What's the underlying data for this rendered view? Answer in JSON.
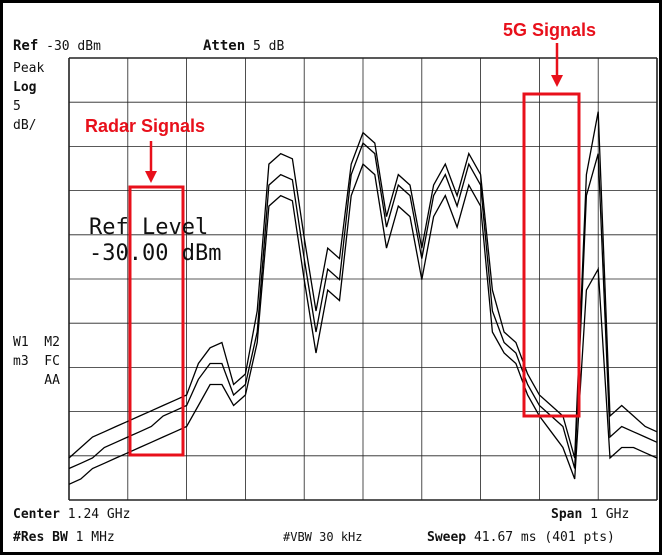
{
  "header": {
    "ref_label": "Ref",
    "ref_value": "-30 dBm",
    "atten_label": "Atten",
    "atten_value": "5 dB"
  },
  "left_labels": {
    "detector": "Peak",
    "scale": "Log",
    "scale_value": "5",
    "scale_unit": "dB/"
  },
  "marker_labels": {
    "line1": "W1  M2",
    "line2": "m3  FC",
    "line3": "    AA"
  },
  "ref_level": {
    "title": "Ref Level",
    "value": "-30.00 dBm"
  },
  "footer": {
    "center_label": "Center",
    "center_value": "1.24 GHz",
    "span_label": "Span",
    "span_value": "1 GHz",
    "resbw_label": "#Res BW",
    "resbw_value": "1 MHz",
    "vbw_label": "#VBW",
    "vbw_value": "30 kHz",
    "sweep_label": "Sweep",
    "sweep_value": "41.67 ms (401 pts)"
  },
  "annotations": {
    "radar": "Radar Signals",
    "fiveg": "5G Signals",
    "color": "#e8101b"
  },
  "chart_data": {
    "type": "line",
    "xlabel": "",
    "ylabel": "",
    "x_range_ghz": [
      0.74,
      1.74
    ],
    "y_range_db": [
      -80,
      -30
    ],
    "grid": true,
    "series": [
      {
        "x": [
          0,
          2,
          4,
          6,
          8,
          10,
          12,
          14,
          16,
          18,
          20,
          22,
          24,
          26,
          28,
          30,
          32,
          34,
          36,
          38,
          40,
          42,
          44,
          46,
          48,
          50,
          52,
          54,
          56,
          58,
          60,
          62,
          64,
          66,
          68,
          70,
          72,
          74,
          76,
          78,
          80,
          82,
          84,
          86,
          88,
          90,
          92,
          94,
          96,
          98,
          100
        ],
        "values": [
          4,
          5,
          6,
          6.5,
          7,
          7.5,
          8,
          8.5,
          9,
          9.5,
          10,
          13,
          14.5,
          15,
          11,
          12,
          18,
          32,
          33,
          32.5,
          25,
          18,
          24,
          23,
          32,
          35,
          34,
          27,
          31,
          30,
          24,
          30,
          32,
          29,
          33,
          31,
          20,
          16,
          15,
          12,
          10,
          9,
          8,
          4,
          31,
          37,
          8,
          9,
          8,
          7,
          6.5
        ]
      },
      {
        "x": [
          0,
          2,
          4,
          6,
          8,
          10,
          12,
          14,
          16,
          18,
          20,
          22,
          24,
          26,
          28,
          30,
          32,
          34,
          36,
          38,
          40,
          42,
          44,
          46,
          48,
          50,
          52,
          54,
          56,
          58,
          60,
          62,
          64,
          66,
          68,
          70,
          72,
          74,
          76,
          78,
          80,
          82,
          84,
          86,
          88,
          90,
          92,
          94,
          96,
          98,
          100
        ],
        "values": [
          3,
          3.5,
          4,
          5,
          5.5,
          6,
          6.5,
          7,
          8,
          8.5,
          9,
          11.5,
          13,
          13,
          10,
          11,
          16,
          30,
          31,
          30.5,
          23,
          16,
          22,
          21,
          31,
          34,
          33,
          26,
          30,
          29,
          23,
          29,
          31,
          28,
          32,
          30,
          18,
          15,
          14,
          11,
          9,
          8,
          7,
          3,
          29,
          33,
          6,
          7,
          6.5,
          6,
          5.5
        ]
      },
      {
        "x": [
          0,
          2,
          4,
          6,
          8,
          10,
          12,
          14,
          16,
          18,
          20,
          22,
          24,
          26,
          28,
          30,
          32,
          34,
          36,
          38,
          40,
          42,
          44,
          46,
          48,
          50,
          52,
          54,
          56,
          58,
          60,
          62,
          64,
          66,
          68,
          70,
          72,
          74,
          76,
          78,
          80,
          82,
          84,
          86,
          88,
          90,
          92,
          94,
          96,
          98,
          100
        ],
        "values": [
          1.5,
          2,
          3,
          3.5,
          4,
          4.5,
          5,
          5.5,
          6,
          6.5,
          7,
          9,
          11,
          11,
          9,
          10,
          15,
          28,
          29,
          28.5,
          21,
          14,
          20,
          19,
          29,
          32,
          31,
          24,
          28,
          27,
          21,
          27,
          29,
          26,
          30,
          28,
          16,
          14,
          13,
          10,
          8,
          6.5,
          5,
          2,
          20,
          22,
          4,
          5,
          5,
          4.5,
          4
        ]
      }
    ]
  }
}
